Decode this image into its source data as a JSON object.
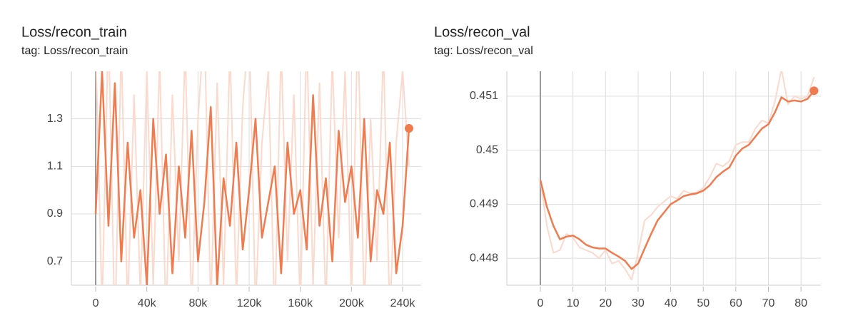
{
  "chart_data": [
    {
      "type": "line",
      "title": "Loss/recon_train",
      "subtitle": "tag: Loss/recon_train",
      "x": [
        0,
        5000,
        10000,
        15000,
        20000,
        25000,
        30000,
        35000,
        40000,
        45000,
        50000,
        55000,
        60000,
        65000,
        70000,
        75000,
        80000,
        85000,
        90000,
        95000,
        100000,
        105000,
        110000,
        115000,
        120000,
        125000,
        130000,
        135000,
        140000,
        145000,
        150000,
        155000,
        160000,
        165000,
        170000,
        175000,
        180000,
        185000,
        190000,
        195000,
        200000,
        205000,
        210000,
        215000,
        220000,
        225000,
        230000,
        235000,
        240000,
        245000
      ],
      "series": [
        {
          "color": "#fbd9cd",
          "values": [
            1.6,
            0.5,
            1.7,
            0.4,
            1.6,
            0.5,
            1.4,
            0.55,
            1.5,
            0.6,
            1.55,
            0.45,
            1.4,
            0.7,
            1.6,
            0.5,
            1.3,
            1.7,
            0.5,
            1.45,
            0.6,
            1.6,
            0.55,
            1.35,
            1.7,
            0.5,
            1.2,
            1.5,
            0.45,
            1.6,
            0.7,
            1.4,
            0.5,
            1.65,
            0.6,
            1.45,
            0.5,
            1.55,
            0.8,
            1.5,
            0.55,
            1.7,
            0.5,
            1.3,
            0.7,
            1.6,
            0.45,
            1.2,
            1.5,
            1.1
          ]
        },
        {
          "color": "#f07b4f",
          "values": [
            0.9,
            1.5,
            0.85,
            1.45,
            0.7,
            1.2,
            0.8,
            1.0,
            0.6,
            1.3,
            0.9,
            1.15,
            0.65,
            1.1,
            0.8,
            1.25,
            0.7,
            0.95,
            1.35,
            0.6,
            1.05,
            0.85,
            1.2,
            0.75,
            1.0,
            1.3,
            0.8,
            0.95,
            1.1,
            0.65,
            1.2,
            0.9,
            1.0,
            0.75,
            1.4,
            0.85,
            1.05,
            0.7,
            1.25,
            0.95,
            1.1,
            0.8,
            1.3,
            0.7,
            1.0,
            0.9,
            1.2,
            0.65,
            0.85,
            1.26
          ]
        }
      ],
      "xlim": [
        -19000,
        254500
      ],
      "ylim": [
        0.6,
        1.5
      ],
      "xticks": [
        0,
        {
          "value": 40000,
          "label": "40k"
        },
        {
          "value": 80000,
          "label": "80k"
        },
        {
          "value": 120000,
          "label": "120k"
        },
        {
          "value": 160000,
          "label": "160k"
        },
        {
          "value": 200000,
          "label": "200k"
        },
        {
          "value": 240000,
          "label": "240k"
        }
      ],
      "yticks": [
        0.7,
        0.9,
        1.1,
        1.3
      ],
      "grid": true
    },
    {
      "type": "line",
      "title": "Loss/recon_val",
      "subtitle": "tag: Loss/recon_val",
      "x": [
        0,
        2,
        4,
        6,
        8,
        10,
        12,
        14,
        16,
        18,
        20,
        22,
        24,
        26,
        28,
        30,
        32,
        34,
        36,
        38,
        40,
        42,
        44,
        46,
        48,
        50,
        52,
        54,
        56,
        58,
        60,
        62,
        64,
        66,
        68,
        70,
        72,
        74,
        76,
        78,
        80,
        82,
        84
      ],
      "series": [
        {
          "color": "#fbd9cd",
          "values": [
            0.44945,
            0.4486,
            0.4481,
            0.44815,
            0.44845,
            0.44838,
            0.4482,
            0.44815,
            0.4481,
            0.448,
            0.44815,
            0.4479,
            0.44795,
            0.4478,
            0.4476,
            0.4481,
            0.4487,
            0.4488,
            0.44895,
            0.44905,
            0.44915,
            0.4491,
            0.44925,
            0.4492,
            0.44922,
            0.4493,
            0.4495,
            0.44975,
            0.4497,
            0.4498,
            0.4501,
            0.45015,
            0.45015,
            0.4504,
            0.45055,
            0.4505,
            0.4509,
            0.4515,
            0.45085,
            0.451,
            0.45095,
            0.451,
            0.45135
          ]
        },
        {
          "color": "#f07b4f",
          "values": [
            0.44945,
            0.44895,
            0.4486,
            0.44835,
            0.4484,
            0.44842,
            0.44835,
            0.44825,
            0.4482,
            0.44818,
            0.44818,
            0.4481,
            0.44803,
            0.44795,
            0.4478,
            0.4479,
            0.44818,
            0.44845,
            0.4487,
            0.44885,
            0.449,
            0.44907,
            0.44915,
            0.44918,
            0.4492,
            0.44925,
            0.44935,
            0.4495,
            0.4496,
            0.44968,
            0.4499,
            0.45003,
            0.4501,
            0.45025,
            0.4504,
            0.45048,
            0.4507,
            0.45098,
            0.4509,
            0.45092,
            0.4509,
            0.45095,
            0.4511
          ]
        }
      ],
      "xlim": [
        -10.3,
        86.1
      ],
      "ylim": [
        0.4475,
        0.45146
      ],
      "xticks": [
        0,
        10,
        20,
        30,
        40,
        50,
        60,
        70,
        80
      ],
      "yticks": [
        0.448,
        0.449,
        0.45,
        0.451
      ],
      "grid": true
    }
  ]
}
